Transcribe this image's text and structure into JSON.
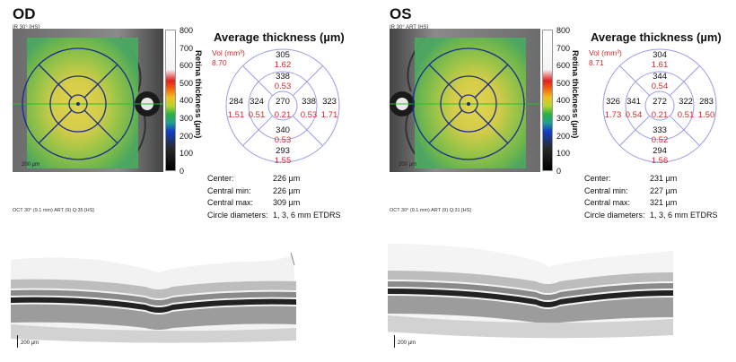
{
  "panels": [
    {
      "eye": "OD",
      "ir_label": "IR 30° [HS]",
      "fundus_scale": "200 µm",
      "colorbar_ticks": [
        "800",
        "700",
        "600",
        "500",
        "400",
        "300",
        "200",
        "100",
        "0"
      ],
      "colorbar_title": "Retina thickness (µm)",
      "chart_title": "Average thickness (µm)",
      "vol_label": "Vol (mm³)",
      "vol_value": "8.70",
      "sectors": {
        "outer_superior": {
          "thickness": "305",
          "volume": "1.62"
        },
        "inner_superior": {
          "thickness": "338",
          "volume": "0.53"
        },
        "outer_temporal": {
          "thickness": "284",
          "volume": "1.51"
        },
        "inner_temporal": {
          "thickness": "324",
          "volume": "0.51"
        },
        "center": {
          "thickness": "270",
          "volume": "0.21"
        },
        "inner_nasal": {
          "thickness": "338",
          "volume": "0.53"
        },
        "outer_nasal": {
          "thickness": "323",
          "volume": "1.71"
        },
        "inner_inferior": {
          "thickness": "340",
          "volume": "0.53"
        },
        "outer_inferior": {
          "thickness": "293",
          "volume": "1.55"
        }
      },
      "stats": [
        {
          "label": "Center:",
          "value": "226 µm"
        },
        {
          "label": "Central min:",
          "value": "226 µm"
        },
        {
          "label": "Central max:",
          "value": "309 µm"
        },
        {
          "label": "Circle diameters:",
          "value": "1, 3, 6 mm ETDRS"
        }
      ],
      "oct_info": "OCT 30° (9.1 mm) ART (9) Q:35 [HS]",
      "bscan_scale": "200 µm",
      "colors": {
        "ring": "#9a9ae6",
        "grid": "#1a2a8c",
        "thickness_text": "#111111",
        "volume_text": "#d42a2a"
      }
    },
    {
      "eye": "OS",
      "ir_label": "IR 30° ART [HS]",
      "fundus_scale": "200 µm",
      "colorbar_ticks": [
        "800",
        "700",
        "600",
        "500",
        "400",
        "300",
        "200",
        "100",
        "0"
      ],
      "colorbar_title": "Retina thickness (µm)",
      "chart_title": "Average thickness (µm)",
      "vol_label": "Vol (mm³)",
      "vol_value": "8.71",
      "sectors": {
        "outer_superior": {
          "thickness": "304",
          "volume": "1.61"
        },
        "inner_superior": {
          "thickness": "344",
          "volume": "0.54"
        },
        "outer_temporal": {
          "thickness": "326",
          "volume": "1.73"
        },
        "inner_temporal": {
          "thickness": "341",
          "volume": "0.54"
        },
        "center": {
          "thickness": "272",
          "volume": "0.21"
        },
        "inner_nasal": {
          "thickness": "322",
          "volume": "0.51"
        },
        "outer_nasal": {
          "thickness": "283",
          "volume": "1.50"
        },
        "inner_inferior": {
          "thickness": "333",
          "volume": "0.52"
        },
        "outer_inferior": {
          "thickness": "294",
          "volume": "1.56"
        }
      },
      "stats": [
        {
          "label": "Center:",
          "value": "231 µm"
        },
        {
          "label": "Central min:",
          "value": "227 µm"
        },
        {
          "label": "Central max:",
          "value": "321 µm"
        },
        {
          "label": "Circle diameters:",
          "value": "1, 3, 6 mm ETDRS"
        }
      ],
      "oct_info": "OCT 30° (9.1 mm) ART (9) Q:31 [HS]",
      "bscan_scale": "200 µm",
      "colors": {
        "ring": "#9a9ae6",
        "grid": "#1a2a8c",
        "thickness_text": "#111111",
        "volume_text": "#d42a2a"
      }
    }
  ]
}
